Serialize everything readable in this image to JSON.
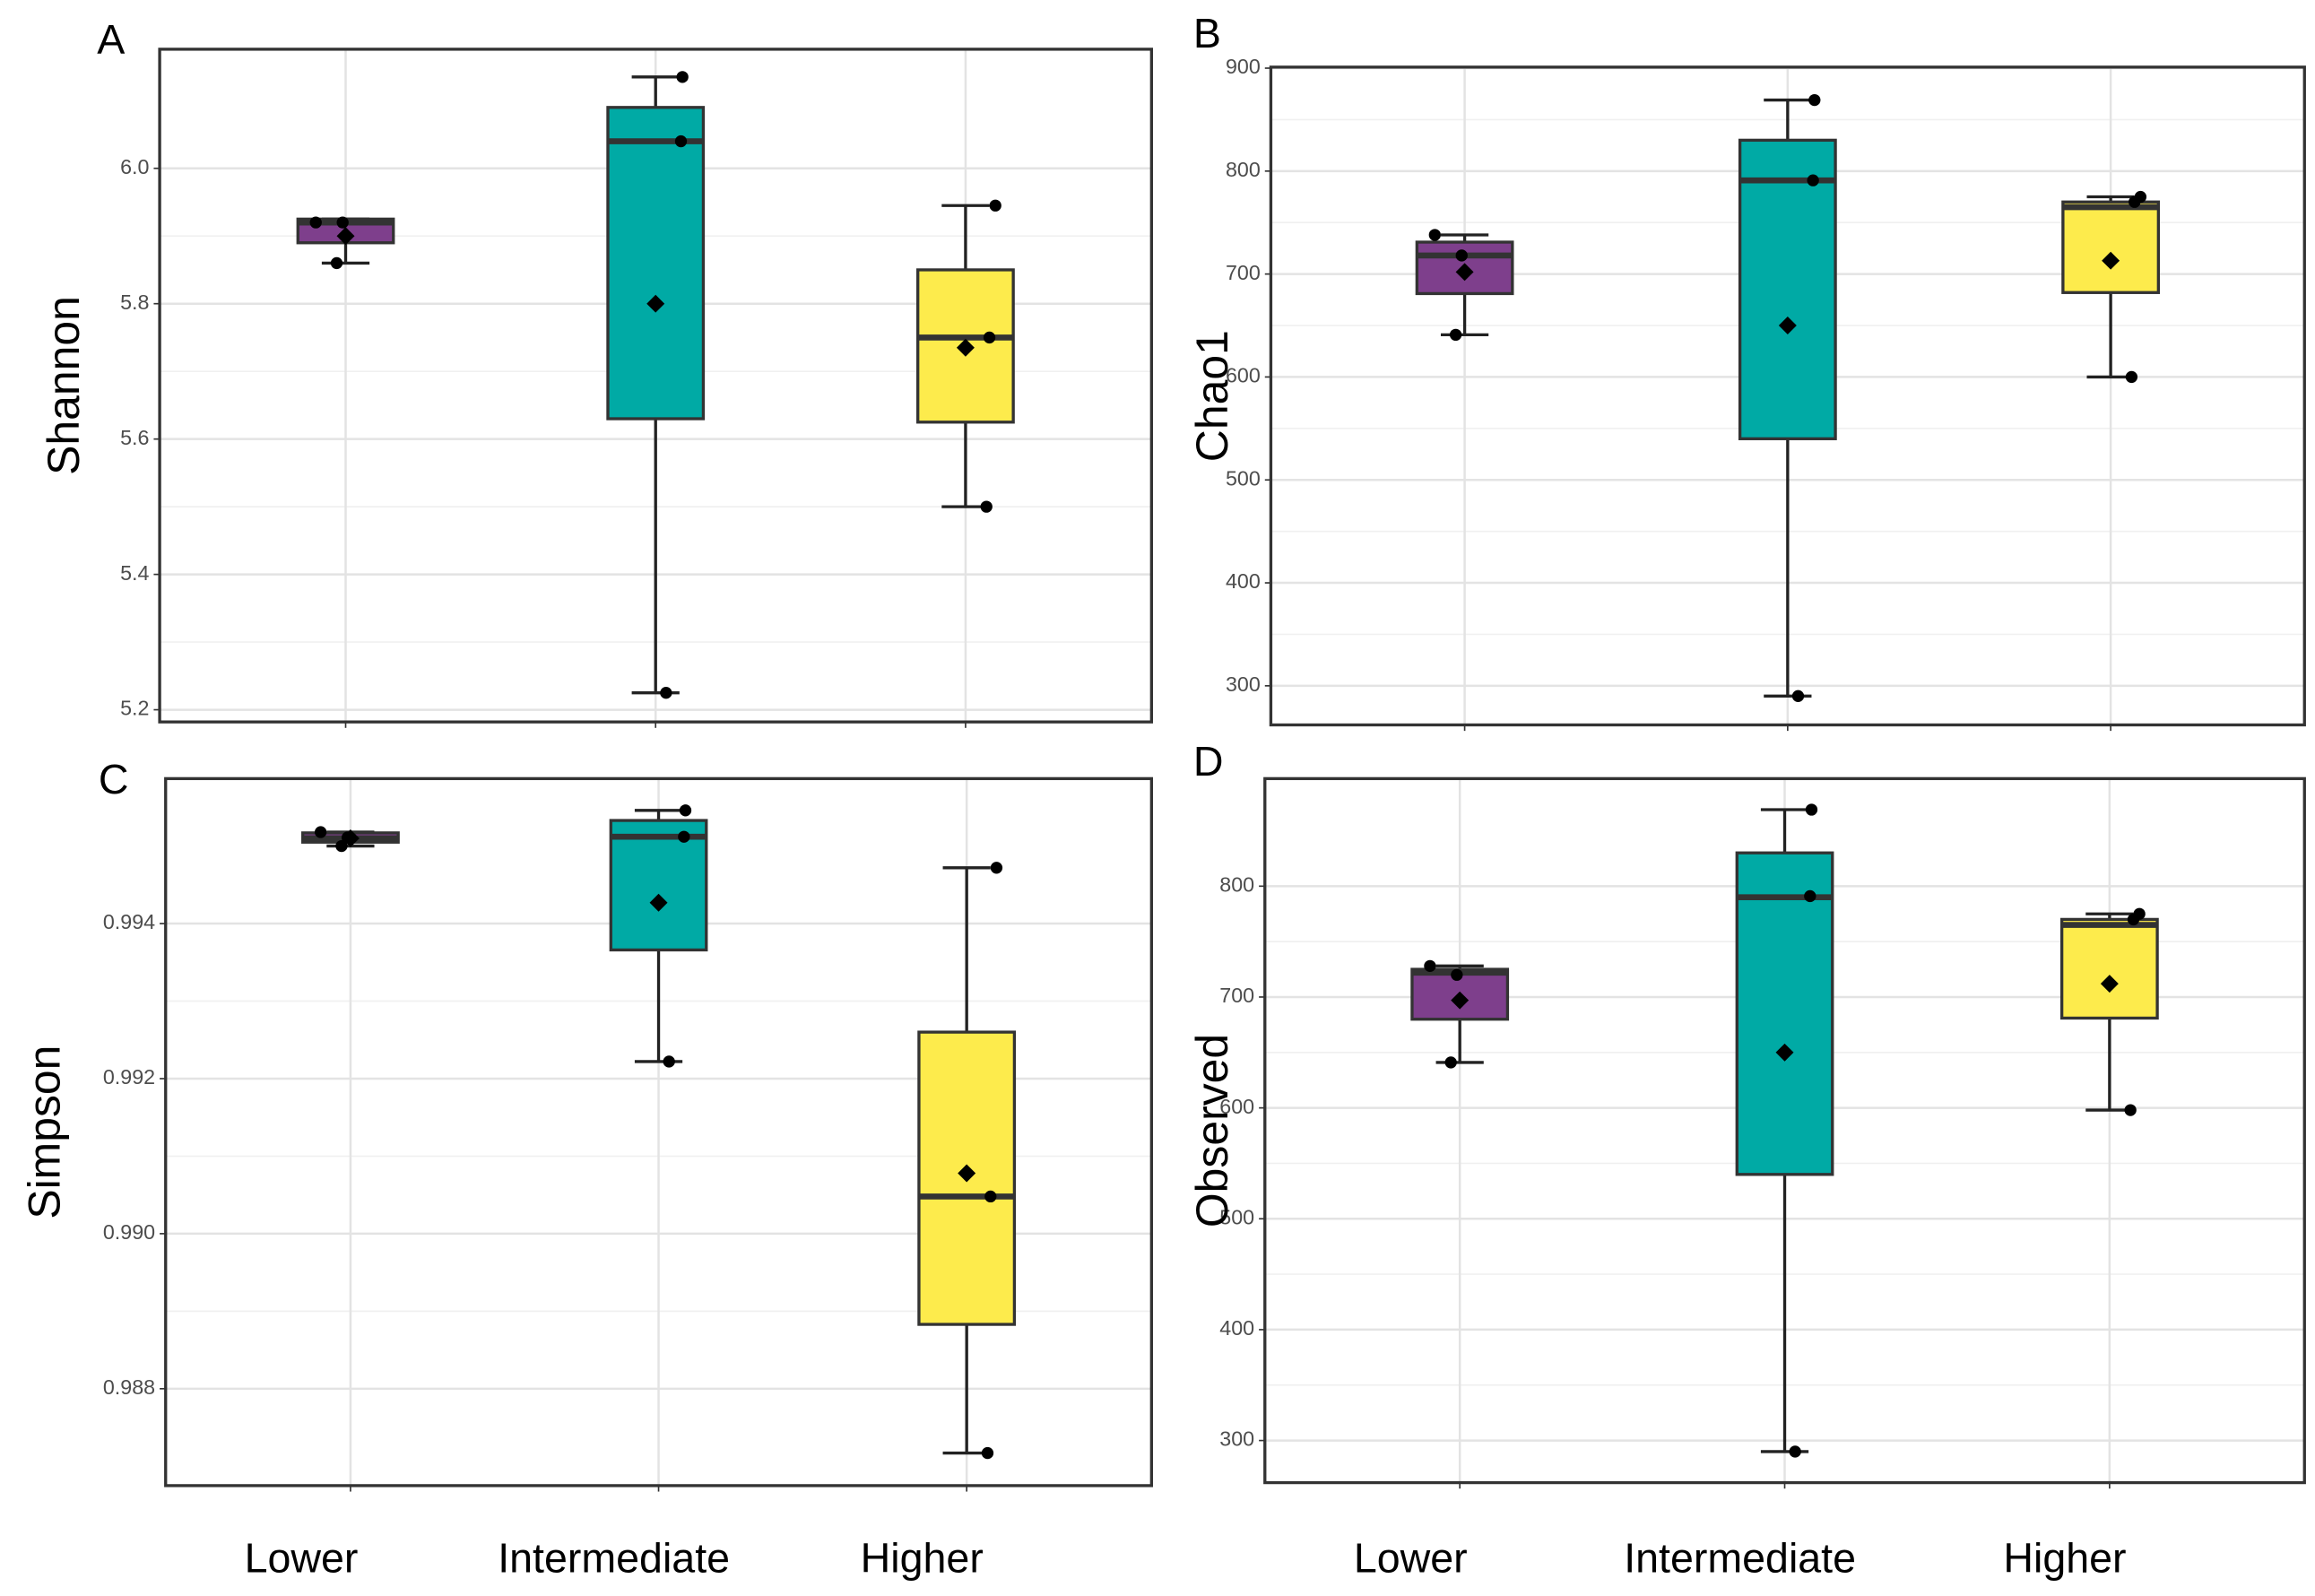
{
  "chart_data": [
    {
      "type": "box",
      "title": "A",
      "ylabel": "Shannon",
      "colors": [
        "#7e3f8c",
        "#00aaa5",
        "#fdeb4c"
      ],
      "ylim": [
        5.182,
        6.176
      ],
      "yticks": [
        5.2,
        5.4,
        5.6,
        5.8,
        {
          "value": 6.0,
          "label": "6.0"
        }
      ],
      "boxes": [
        {
          "q1": 5.89,
          "median": 5.92,
          "q3": 5.925,
          "low": 5.86,
          "high": 5.925,
          "mean": 5.9,
          "points": [
            5.92,
            5.92,
            5.86
          ]
        },
        {
          "q1": 5.63,
          "median": 6.04,
          "q3": 6.09,
          "low": 5.225,
          "high": 6.135,
          "mean": 5.8,
          "points": [
            6.135,
            6.04,
            5.225
          ]
        },
        {
          "q1": 5.625,
          "median": 5.75,
          "q3": 5.85,
          "low": 5.5,
          "high": 5.945,
          "mean": 5.735,
          "points": [
            5.945,
            5.75,
            5.5
          ]
        }
      ]
    },
    {
      "type": "box",
      "title": "B",
      "ylabel": "Chao1",
      "colors": [
        "#7e3f8c",
        "#00aaa5",
        "#fdeb4c"
      ],
      "ylim": [
        262,
        901
      ],
      "yticks": [
        300,
        400,
        500,
        600,
        700,
        800,
        900
      ],
      "boxes": [
        {
          "q1": 681,
          "median": 718,
          "q3": 731,
          "low": 641,
          "high": 738,
          "mean": 702,
          "points": [
            738,
            718,
            641
          ]
        },
        {
          "q1": 540,
          "median": 791,
          "q3": 830,
          "low": 290,
          "high": 869,
          "mean": 650,
          "points": [
            869,
            791,
            290
          ]
        },
        {
          "q1": 682,
          "median": 765,
          "q3": 770,
          "low": 600,
          "high": 775,
          "mean": 713,
          "points": [
            775,
            770,
            600
          ]
        }
      ]
    },
    {
      "type": "box",
      "title": "C",
      "ylabel": "Simpson",
      "colors": [
        "#7e3f8c",
        "#00aaa5",
        "#fdeb4c"
      ],
      "categories": [
        "Lower",
        "Intermediate",
        "Higher"
      ],
      "ylim": [
        0.98675,
        0.99587
      ],
      "yticks": [
        0.988,
        {
          "value": 0.99,
          "label": "0.990"
        },
        0.992,
        0.994
      ],
      "boxes": [
        {
          "q1": 0.99505,
          "median": 0.9951,
          "q3": 0.99517,
          "low": 0.995,
          "high": 0.99518,
          "mean": 0.9951,
          "points": [
            0.99518,
            0.99511,
            0.995
          ]
        },
        {
          "q1": 0.99366,
          "median": 0.99512,
          "q3": 0.99533,
          "low": 0.99222,
          "high": 0.99546,
          "mean": 0.99427,
          "points": [
            0.99546,
            0.99512,
            0.99222
          ]
        },
        {
          "q1": 0.98883,
          "median": 0.99048,
          "q3": 0.9926,
          "low": 0.98717,
          "high": 0.99472,
          "mean": 0.99078,
          "points": [
            0.99472,
            0.99048,
            0.98717
          ]
        }
      ]
    },
    {
      "type": "box",
      "title": "D",
      "ylabel": "Observed",
      "colors": [
        "#7e3f8c",
        "#00aaa5",
        "#fdeb4c"
      ],
      "categories": [
        "Lower",
        "Intermediate",
        "Higher"
      ],
      "ylim": [
        262,
        897
      ],
      "yticks": [
        300,
        400,
        500,
        600,
        700,
        800
      ],
      "boxes": [
        {
          "q1": 680,
          "median": 722,
          "q3": 725,
          "low": 641,
          "high": 728,
          "mean": 697,
          "points": [
            728,
            720,
            641
          ]
        },
        {
          "q1": 540,
          "median": 790,
          "q3": 830,
          "low": 290,
          "high": 869,
          "mean": 650,
          "points": [
            869,
            791,
            290
          ]
        },
        {
          "q1": 681,
          "median": 765,
          "q3": 770,
          "low": 598,
          "high": 775,
          "mean": 712,
          "points": [
            775,
            770,
            598
          ]
        }
      ]
    }
  ]
}
